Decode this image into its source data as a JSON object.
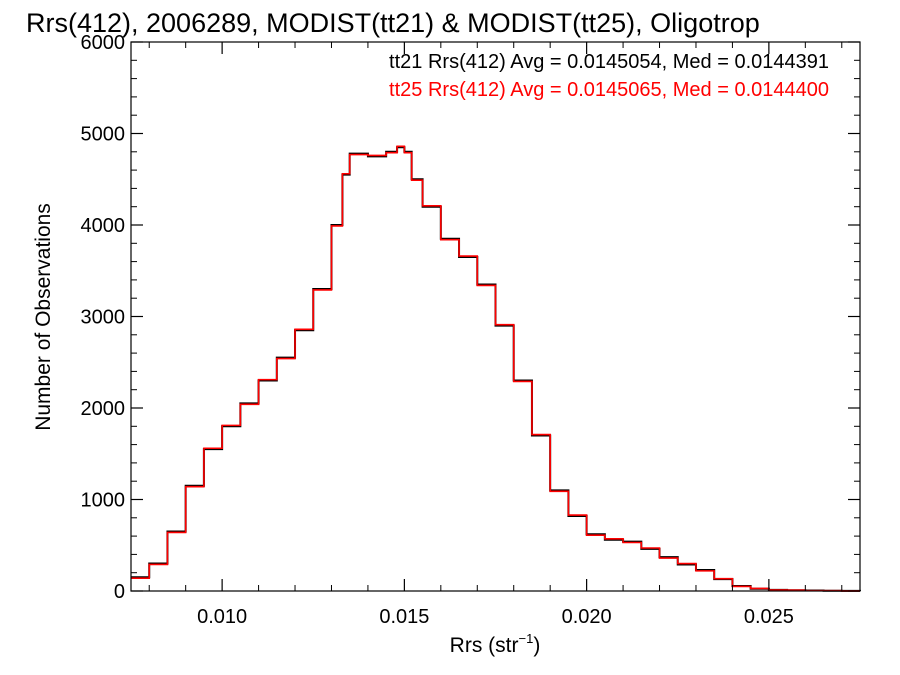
{
  "chart_data": {
    "type": "line",
    "title": "Rrs(412), 2006289, MODIST(tt21) & MODIST(tt25), Oligotrop",
    "ylabel": "Number of Observations",
    "xlabel_main": "Rrs (str",
    "xlabel_sup": "−1",
    "xlabel_close": ")",
    "xlim": [
      0.0075,
      0.0275
    ],
    "ylim": [
      0,
      6000
    ],
    "x_ticks": [
      0.01,
      0.015,
      0.02,
      0.025
    ],
    "x_tick_labels": [
      "0.010",
      "0.015",
      "0.020",
      "0.025"
    ],
    "y_ticks": [
      0,
      1000,
      2000,
      3000,
      4000,
      5000,
      6000
    ],
    "y_tick_labels": [
      "0",
      "1000",
      "2000",
      "3000",
      "4000",
      "5000",
      "6000"
    ],
    "grid": false,
    "legend_position": "top-right",
    "legend": [
      {
        "text": "tt21 Rrs(412) Avg = 0.0145054, Med = 0.0144391",
        "color": "#000000"
      },
      {
        "text": "tt25 Rrs(412) Avg = 0.0145065, Med = 0.0144400",
        "color": "#ff0000"
      }
    ],
    "series": [
      {
        "color": "#000000",
        "x": [
          0.0075,
          0.008,
          0.0085,
          0.009,
          0.0095,
          0.01,
          0.0105,
          0.011,
          0.0115,
          0.012,
          0.0125,
          0.013,
          0.0133,
          0.0135,
          0.014,
          0.0145,
          0.0148,
          0.015,
          0.0152,
          0.0155,
          0.016,
          0.0165,
          0.017,
          0.0175,
          0.018,
          0.0185,
          0.019,
          0.0195,
          0.02,
          0.0205,
          0.021,
          0.0215,
          0.022,
          0.0225,
          0.023,
          0.0235,
          0.024,
          0.0245,
          0.025,
          0.0255,
          0.026,
          0.0265,
          0.027,
          0.0275
        ],
        "y": [
          150,
          300,
          650,
          1150,
          1550,
          1800,
          2050,
          2300,
          2550,
          2850,
          3300,
          4000,
          4550,
          4780,
          4750,
          4800,
          4850,
          4800,
          4500,
          4200,
          3850,
          3650,
          3350,
          2900,
          2300,
          1700,
          1100,
          820,
          620,
          560,
          540,
          460,
          370,
          290,
          230,
          130,
          55,
          25,
          12,
          8,
          5,
          3,
          2,
          1
        ]
      },
      {
        "color": "#ff0000",
        "x": [
          0.0075,
          0.008,
          0.0085,
          0.009,
          0.0095,
          0.01,
          0.0105,
          0.011,
          0.0115,
          0.012,
          0.0125,
          0.013,
          0.0133,
          0.0135,
          0.014,
          0.0145,
          0.0148,
          0.015,
          0.0152,
          0.0155,
          0.016,
          0.0165,
          0.017,
          0.0175,
          0.018,
          0.0185,
          0.019,
          0.0195,
          0.02,
          0.0205,
          0.021,
          0.0215,
          0.022,
          0.0225,
          0.023,
          0.0235,
          0.024,
          0.0245,
          0.025,
          0.0255,
          0.026,
          0.0265,
          0.027,
          0.0275
        ],
        "y": [
          140,
          290,
          640,
          1140,
          1560,
          1810,
          2040,
          2310,
          2540,
          2860,
          3290,
          3990,
          4560,
          4770,
          4760,
          4790,
          4860,
          4790,
          4490,
          4210,
          3840,
          3660,
          3340,
          2910,
          2290,
          1710,
          1090,
          830,
          610,
          570,
          530,
          470,
          360,
          300,
          220,
          135,
          50,
          28,
          10,
          9,
          4,
          3,
          1,
          1
        ]
      }
    ]
  }
}
